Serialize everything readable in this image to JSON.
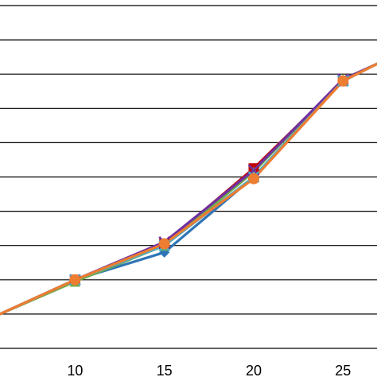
{
  "chart_data": {
    "type": "line",
    "title": "",
    "xlabel": "",
    "ylabel": "",
    "grid": true,
    "xlim": [
      5.8,
      26.9
    ],
    "ylim": [
      0,
      10
    ],
    "x_ticks": [
      10,
      15,
      20,
      25
    ],
    "x_tick_labels": [
      "10",
      "15",
      "20",
      "25"
    ],
    "y_gridlines": [
      1,
      2,
      3,
      4,
      5,
      6,
      7,
      8,
      9,
      10
    ],
    "series": [
      {
        "color": "#2e75b6",
        "marker": "diamond",
        "x": [
          5.8,
          10,
          15,
          20,
          25,
          26.9
        ],
        "y": [
          1.0,
          2.0,
          2.8,
          5.0,
          7.8,
          8.3
        ]
      },
      {
        "color": "#c00000",
        "marker": "square",
        "x": [
          5.8,
          10,
          15,
          20,
          25,
          26.9
        ],
        "y": [
          1.0,
          2.0,
          3.05,
          5.25,
          7.8,
          8.3
        ]
      },
      {
        "color": "#70ad47",
        "marker": "triangle",
        "x": [
          5.8,
          10,
          15,
          20,
          25,
          26.9
        ],
        "y": [
          1.0,
          1.95,
          3.0,
          5.15,
          7.85,
          8.3
        ]
      },
      {
        "color": "#7030a0",
        "marker": "x",
        "x": [
          5.8,
          10,
          15,
          20,
          25,
          26.9
        ],
        "y": [
          1.0,
          2.0,
          3.1,
          5.2,
          7.85,
          8.3
        ]
      },
      {
        "color": "#4bacc6",
        "marker": "star",
        "x": [
          5.8,
          10,
          15,
          20,
          25,
          26.9
        ],
        "y": [
          1.0,
          2.0,
          3.0,
          5.0,
          7.8,
          8.3
        ]
      },
      {
        "color": "#ed7d31",
        "marker": "circle",
        "x": [
          5.8,
          10,
          15,
          20,
          25,
          26.9
        ],
        "y": [
          1.0,
          2.0,
          3.05,
          4.95,
          7.8,
          8.3
        ]
      }
    ]
  }
}
